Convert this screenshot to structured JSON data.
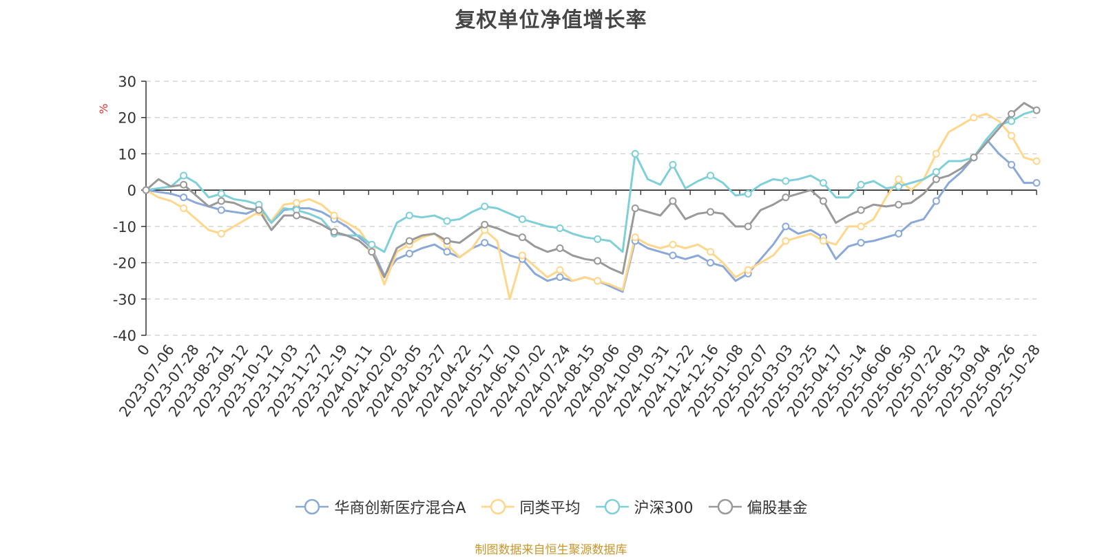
{
  "chart_data": {
    "type": "line",
    "title": "复权单位净值增长率",
    "ylabel": "%",
    "ylim": [
      -40,
      30
    ],
    "yticks": [
      -40,
      -30,
      -20,
      -10,
      0,
      10,
      20,
      30
    ],
    "x_tick_labels": [
      "0",
      "2023-07-06",
      "2023-07-28",
      "2023-08-21",
      "2023-09-12",
      "2023-10-12",
      "2023-11-03",
      "2023-11-27",
      "2023-12-19",
      "2024-01-11",
      "2024-02-02",
      "2024-03-05",
      "2024-03-27",
      "2024-04-22",
      "2024-05-17",
      "2024-06-10",
      "2024-07-02",
      "2024-07-24",
      "2024-08-15",
      "2024-09-06",
      "2024-10-09",
      "2024-10-31",
      "2024-11-22",
      "2024-12-16",
      "2025-01-08",
      "2025-02-07",
      "2025-03-03",
      "2025-03-25",
      "2025-04-17",
      "2025-05-14",
      "2025-06-06",
      "2025-06-30",
      "2025-07-22",
      "2025-08-13",
      "2025-09-04",
      "2025-09-26",
      "2025-10-28"
    ],
    "grid": true,
    "legend_position": "bottom",
    "x": [
      "0",
      "2023-07-06",
      "2023-07-17",
      "2023-07-28",
      "2023-08-09",
      "2023-08-21",
      "2023-08-31",
      "2023-09-12",
      "2023-09-25",
      "2023-10-12",
      "2023-10-23",
      "2023-11-03",
      "2023-11-15",
      "2023-11-27",
      "2023-12-07",
      "2023-12-19",
      "2023-12-29",
      "2024-01-11",
      "2024-01-23",
      "2024-02-02",
      "2024-02-20",
      "2024-03-05",
      "2024-03-15",
      "2024-03-27",
      "2024-04-10",
      "2024-04-22",
      "2024-05-06",
      "2024-05-17",
      "2024-05-29",
      "2024-06-10",
      "2024-06-20",
      "2024-07-02",
      "2024-07-12",
      "2024-07-24",
      "2024-08-05",
      "2024-08-15",
      "2024-08-27",
      "2024-09-06",
      "2024-09-20",
      "2024-10-09",
      "2024-10-21",
      "2024-10-31",
      "2024-11-11",
      "2024-11-22",
      "2024-12-04",
      "2024-12-16",
      "2024-12-26",
      "2025-01-08",
      "2025-01-20",
      "2025-02-07",
      "2025-02-19",
      "2025-03-03",
      "2025-03-13",
      "2025-03-25",
      "2025-04-07",
      "2025-04-17",
      "2025-04-30",
      "2025-05-14",
      "2025-05-26",
      "2025-06-06",
      "2025-06-18",
      "2025-06-30",
      "2025-07-10",
      "2025-07-22",
      "2025-08-01",
      "2025-08-13",
      "2025-08-25",
      "2025-09-04",
      "2025-09-16",
      "2025-09-26",
      "2025-10-15",
      "2025-10-28"
    ],
    "series": [
      {
        "name": "华商创新医疗混合A",
        "color": "#8aa8d8",
        "values": [
          0,
          -0.5,
          -1.0,
          -2.0,
          -3.5,
          -4.5,
          -5.5,
          -6.0,
          -6.5,
          -5.0,
          -9.0,
          -5.5,
          -5.0,
          -5.0,
          -6.0,
          -8.0,
          -10.0,
          -13.0,
          -16.0,
          -23.5,
          -19.0,
          -17.5,
          -16.0,
          -15.0,
          -17.0,
          -18.5,
          -16.0,
          -14.5,
          -16.0,
          -18.0,
          -19.0,
          -23.0,
          -25.0,
          -24.0,
          -25.0,
          -24.0,
          -25.0,
          -26.5,
          -28.0,
          -14.0,
          -16.0,
          -17.0,
          -18.0,
          -19.0,
          -18.0,
          -20.0,
          -21.0,
          -25.0,
          -23.0,
          -19.0,
          -15.0,
          -10.0,
          -12.0,
          -11.0,
          -13.0,
          -19.0,
          -15.5,
          -14.5,
          -14.0,
          -13.0,
          -12.0,
          -9.0,
          -8.0,
          -3.0,
          2.0,
          5.0,
          9.0,
          14.0,
          10.0,
          7.0,
          2.0,
          2.0
        ]
      },
      {
        "name": "同类平均",
        "color": "#ffd68a",
        "values": [
          0,
          -2.0,
          -3.0,
          -5.0,
          -8.0,
          -11.0,
          -12.0,
          -10.0,
          -8.0,
          -6.0,
          -8.5,
          -4.0,
          -3.5,
          -2.5,
          -4.0,
          -7.0,
          -9.0,
          -11.0,
          -16.0,
          -26.0,
          -17.0,
          -15.0,
          -13.0,
          -12.0,
          -15.0,
          -18.5,
          -16.0,
          -11.0,
          -14.0,
          -30.0,
          -18.0,
          -21.0,
          -24.0,
          -22.0,
          -25.0,
          -24.0,
          -25.0,
          -26.0,
          -27.5,
          -13.0,
          -15.0,
          -16.0,
          -15.0,
          -16.0,
          -15.0,
          -17.0,
          -20.0,
          -24.0,
          -22.0,
          -20.0,
          -18.0,
          -14.0,
          -13.0,
          -12.0,
          -14.0,
          -15.0,
          -10.0,
          -10.0,
          -8.0,
          -2.0,
          3.0,
          0.0,
          3.0,
          10.0,
          16.0,
          18.0,
          20.0,
          21.0,
          19.0,
          15.0,
          9.0,
          8.0
        ]
      },
      {
        "name": "沪深300",
        "color": "#7fcfd8",
        "values": [
          0,
          0.5,
          1.0,
          4.0,
          2.0,
          -2.0,
          -1.0,
          -2.5,
          -3.0,
          -4.0,
          -9.0,
          -5.0,
          -5.5,
          -6.5,
          -8.0,
          -12.0,
          -12.5,
          -12.5,
          -15.0,
          -17.0,
          -9.0,
          -7.0,
          -7.5,
          -7.0,
          -8.5,
          -8.0,
          -6.0,
          -4.5,
          -5.0,
          -6.5,
          -8.0,
          -9.0,
          -10.0,
          -10.5,
          -12.0,
          -13.0,
          -13.5,
          -14.0,
          -17.0,
          10.0,
          3.0,
          1.5,
          7.0,
          0.5,
          2.5,
          4.0,
          2.0,
          -1.5,
          -1.0,
          1.5,
          3.0,
          2.5,
          3.0,
          4.0,
          2.0,
          -2.0,
          -2.0,
          1.5,
          2.5,
          0.5,
          1.0,
          2.0,
          3.0,
          5.0,
          8.0,
          8.0,
          9.0,
          14.0,
          18.0,
          19.0,
          21.0,
          22.0
        ]
      },
      {
        "name": "偏股基金",
        "color": "#999999",
        "values": [
          0,
          3.0,
          1.0,
          1.5,
          -1.5,
          -4.5,
          -3.0,
          -3.5,
          -5.0,
          -5.5,
          -11.0,
          -7.0,
          -7.0,
          -8.0,
          -9.5,
          -11.5,
          -12.5,
          -14.0,
          -17.0,
          -24.0,
          -16.0,
          -14.0,
          -12.5,
          -12.0,
          -14.0,
          -14.5,
          -12.0,
          -9.5,
          -10.5,
          -12.0,
          -13.0,
          -15.5,
          -17.0,
          -16.0,
          -18.0,
          -19.0,
          -19.5,
          -21.5,
          -23.0,
          -5.0,
          -6.0,
          -7.0,
          -3.0,
          -8.0,
          -6.5,
          -6.0,
          -6.5,
          -10.0,
          -10.0,
          -5.5,
          -4.0,
          -2.0,
          -1.0,
          0.0,
          -3.0,
          -9.0,
          -7.0,
          -5.5,
          -4.0,
          -4.5,
          -4.0,
          -3.5,
          -1.0,
          3.0,
          4.0,
          6.0,
          9.0,
          13.0,
          17.0,
          21.0,
          24.0,
          22.0
        ]
      }
    ]
  },
  "source_note": "制图数据来自恒生聚源数据库"
}
